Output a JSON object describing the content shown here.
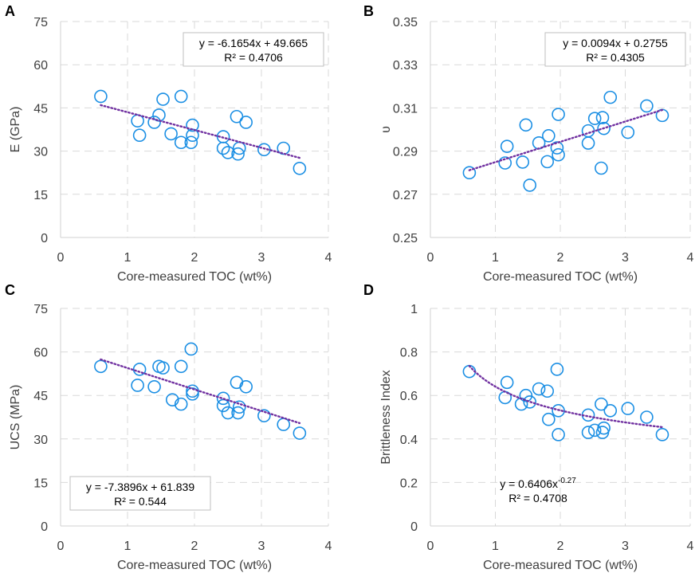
{
  "colors": {
    "marker": "#1b8fe4",
    "trend": "#7030a0"
  },
  "chart_data": [
    {
      "type": "scatter",
      "panel": "A",
      "xlabel": "Core-measured TOC (wt%)",
      "ylabel": "E (GPa)",
      "xlim": [
        0,
        4
      ],
      "ylim": [
        0,
        75
      ],
      "xticks": [
        "0",
        "1",
        "2",
        "3",
        "4"
      ],
      "yticks": [
        "0",
        "15",
        "30",
        "45",
        "60",
        "75"
      ],
      "equation_lines": [
        "y = -6.1654x + 49.665",
        "R² = 0.4706"
      ],
      "equation_position": "top-right",
      "trend": {
        "type": "linear",
        "a": -6.1654,
        "b": 49.665,
        "x_range": [
          0.6,
          3.57
        ]
      },
      "points": [
        [
          0.6,
          49
        ],
        [
          1.15,
          40.5
        ],
        [
          1.18,
          35.5
        ],
        [
          1.4,
          40
        ],
        [
          1.47,
          42.5
        ],
        [
          1.53,
          48
        ],
        [
          1.65,
          36
        ],
        [
          1.8,
          49
        ],
        [
          1.8,
          33
        ],
        [
          1.95,
          33
        ],
        [
          1.97,
          39
        ],
        [
          1.97,
          35.5
        ],
        [
          2.43,
          35
        ],
        [
          2.43,
          31
        ],
        [
          2.5,
          29.5
        ],
        [
          2.63,
          42
        ],
        [
          2.65,
          29
        ],
        [
          2.67,
          31
        ],
        [
          2.77,
          40
        ],
        [
          3.04,
          30.5
        ],
        [
          3.33,
          31
        ],
        [
          3.57,
          24
        ]
      ]
    },
    {
      "type": "scatter",
      "panel": "B",
      "xlabel": "Core-measured TOC (wt%)",
      "ylabel": "υ",
      "xlim": [
        0,
        4
      ],
      "ylim": [
        0.25,
        0.35
      ],
      "xticks": [
        "0",
        "1",
        "2",
        "3",
        "4"
      ],
      "yticks": [
        "0.25",
        "0.27",
        "0.29",
        "0.31",
        "0.33",
        "0.35"
      ],
      "equation_lines": [
        "y = 0.0094x + 0.2755",
        "R² = 0.4305"
      ],
      "equation_position": "top-right",
      "trend": {
        "type": "linear",
        "a": 0.0094,
        "b": 0.2755,
        "x_range": [
          0.6,
          3.57
        ]
      },
      "points": [
        [
          0.6,
          0.28
        ],
        [
          1.15,
          0.2845
        ],
        [
          1.18,
          0.2922
        ],
        [
          1.42,
          0.2849
        ],
        [
          1.47,
          0.3021
        ],
        [
          1.53,
          0.2742
        ],
        [
          1.67,
          0.2938
        ],
        [
          1.8,
          0.2851
        ],
        [
          1.82,
          0.2971
        ],
        [
          1.95,
          0.2915
        ],
        [
          1.97,
          0.307
        ],
        [
          1.97,
          0.2883
        ],
        [
          2.43,
          0.2937
        ],
        [
          2.43,
          0.2994
        ],
        [
          2.53,
          0.3051
        ],
        [
          2.63,
          0.2821
        ],
        [
          2.65,
          0.3055
        ],
        [
          2.67,
          0.3005
        ],
        [
          2.77,
          0.3149
        ],
        [
          3.04,
          0.2987
        ],
        [
          3.33,
          0.3109
        ],
        [
          3.57,
          0.3065
        ]
      ]
    },
    {
      "type": "scatter",
      "panel": "C",
      "xlabel": "Core-measured TOC (wt%)",
      "ylabel": "UCS (MPa)",
      "xlim": [
        0,
        4
      ],
      "ylim": [
        0,
        75
      ],
      "xticks": [
        "0",
        "1",
        "2",
        "3",
        "4"
      ],
      "yticks": [
        "0",
        "15",
        "30",
        "45",
        "60",
        "75"
      ],
      "equation_lines": [
        "y = -7.3896x + 61.839",
        "R² = 0.544"
      ],
      "equation_position": "bottom-left",
      "trend": {
        "type": "linear",
        "a": -7.3896,
        "b": 61.839,
        "x_range": [
          0.6,
          3.57
        ]
      },
      "points": [
        [
          0.6,
          55
        ],
        [
          1.15,
          48.5
        ],
        [
          1.18,
          54
        ],
        [
          1.4,
          48
        ],
        [
          1.47,
          55
        ],
        [
          1.53,
          54.5
        ],
        [
          1.67,
          43.5
        ],
        [
          1.8,
          55
        ],
        [
          1.8,
          42
        ],
        [
          1.95,
          61
        ],
        [
          1.97,
          45.5
        ],
        [
          1.97,
          46.5
        ],
        [
          2.43,
          44
        ],
        [
          2.43,
          41.5
        ],
        [
          2.5,
          39
        ],
        [
          2.63,
          49.5
        ],
        [
          2.65,
          39
        ],
        [
          2.67,
          41
        ],
        [
          2.77,
          48
        ],
        [
          3.04,
          38
        ],
        [
          3.33,
          35
        ],
        [
          3.57,
          32
        ]
      ]
    },
    {
      "type": "scatter",
      "panel": "D",
      "xlabel": "Core-measured TOC (wt%)",
      "ylabel": "Brittleness Index",
      "xlim": [
        0,
        4
      ],
      "ylim": [
        0,
        1
      ],
      "xticks": [
        "0",
        "1",
        "2",
        "3",
        "4"
      ],
      "yticks": [
        "0",
        "0.2",
        "0.4",
        "0.6",
        "0.8",
        "1"
      ],
      "equation_lines": [
        "y = 0.6406x",
        "R² = 0.4708"
      ],
      "equation_exponent": "-0.27",
      "equation_position": "bottom-left",
      "trend": {
        "type": "power",
        "a": 0.6406,
        "b": -0.27,
        "x_range": [
          0.6,
          3.57
        ]
      },
      "points": [
        [
          0.6,
          0.71
        ],
        [
          1.15,
          0.59
        ],
        [
          1.18,
          0.66
        ],
        [
          1.4,
          0.56
        ],
        [
          1.47,
          0.6
        ],
        [
          1.53,
          0.57
        ],
        [
          1.67,
          0.63
        ],
        [
          1.8,
          0.62
        ],
        [
          1.82,
          0.49
        ],
        [
          1.95,
          0.72
        ],
        [
          1.97,
          0.42
        ],
        [
          1.97,
          0.53
        ],
        [
          2.43,
          0.43
        ],
        [
          2.43,
          0.51
        ],
        [
          2.53,
          0.44
        ],
        [
          2.63,
          0.56
        ],
        [
          2.65,
          0.43
        ],
        [
          2.67,
          0.45
        ],
        [
          2.77,
          0.53
        ],
        [
          3.04,
          0.54
        ],
        [
          3.33,
          0.5
        ],
        [
          3.57,
          0.42
        ]
      ]
    }
  ]
}
